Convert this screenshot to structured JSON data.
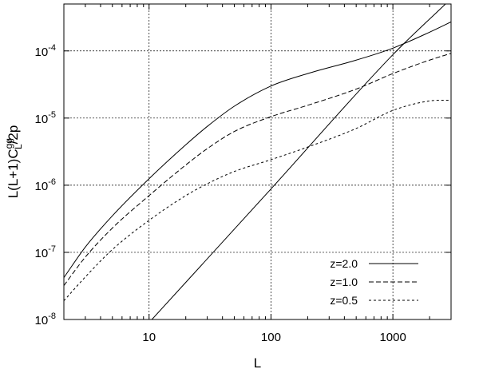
{
  "chart_data": {
    "type": "line",
    "xlabel": "L",
    "ylabel_parts": {
      "pre": "L(L+1)C",
      "sup": "gg",
      "sub": "L",
      "post": "/2p"
    },
    "x_scale": "log",
    "y_scale": "log",
    "xlim": [
      2,
      3000
    ],
    "ylim": [
      1e-08,
      0.0005
    ],
    "x_ticks": [
      {
        "value": 10,
        "label": "10"
      },
      {
        "value": 100,
        "label": "100"
      },
      {
        "value": 1000,
        "label": "1000"
      }
    ],
    "y_ticks": [
      {
        "value": 1e-08,
        "base": "10",
        "exp": "-8"
      },
      {
        "value": 1e-07,
        "base": "10",
        "exp": "-7"
      },
      {
        "value": 1e-06,
        "base": "10",
        "exp": "-6"
      },
      {
        "value": 1e-05,
        "base": "10",
        "exp": "-5"
      },
      {
        "value": 0.0001,
        "base": "10",
        "exp": "-4"
      }
    ],
    "grid": true,
    "legend_position": "bottom-right",
    "series": [
      {
        "name": "z=2.0",
        "dash": "none",
        "points": [
          [
            2,
            4.2e-08
          ],
          [
            3,
            1.2e-07
          ],
          [
            5,
            3.5e-07
          ],
          [
            10,
            1.25e-06
          ],
          [
            20,
            4e-06
          ],
          [
            30,
            7.5e-06
          ],
          [
            50,
            1.5e-05
          ],
          [
            100,
            3e-05
          ],
          [
            200,
            4.6e-05
          ],
          [
            500,
            7.3e-05
          ],
          [
            1000,
            0.00011
          ],
          [
            2000,
            0.00019
          ],
          [
            3000,
            0.00027
          ]
        ]
      },
      {
        "name": "z=1.0",
        "dash": "6,3",
        "points": [
          [
            2,
            3.2e-08
          ],
          [
            3,
            8.5e-08
          ],
          [
            5,
            2.3e-07
          ],
          [
            10,
            7e-07
          ],
          [
            20,
            2e-06
          ],
          [
            30,
            3.5e-06
          ],
          [
            50,
            6.3e-06
          ],
          [
            100,
            1.05e-05
          ],
          [
            200,
            1.55e-05
          ],
          [
            500,
            2.7e-05
          ],
          [
            1000,
            4.6e-05
          ],
          [
            2000,
            7.3e-05
          ],
          [
            3000,
            9.2e-05
          ]
        ]
      },
      {
        "name": "z=0.5",
        "dash": "3,3",
        "points": [
          [
            2,
            1.9e-08
          ],
          [
            3,
            4.3e-08
          ],
          [
            5,
            1.1e-07
          ],
          [
            10,
            3e-07
          ],
          [
            20,
            7e-07
          ],
          [
            30,
            1.05e-06
          ],
          [
            50,
            1.6e-06
          ],
          [
            100,
            2.4e-06
          ],
          [
            200,
            3.7e-06
          ],
          [
            500,
            7e-06
          ],
          [
            1000,
            1.3e-05
          ],
          [
            2000,
            1.8e-05
          ],
          [
            3000,
            1.85e-05
          ]
        ]
      },
      {
        "name": "",
        "dash": "none",
        "points": [
          [
            10,
            9e-09
          ],
          [
            100,
            8.8e-07
          ],
          [
            1000,
            8.8e-05
          ],
          [
            2700,
            0.0005
          ]
        ]
      }
    ]
  }
}
